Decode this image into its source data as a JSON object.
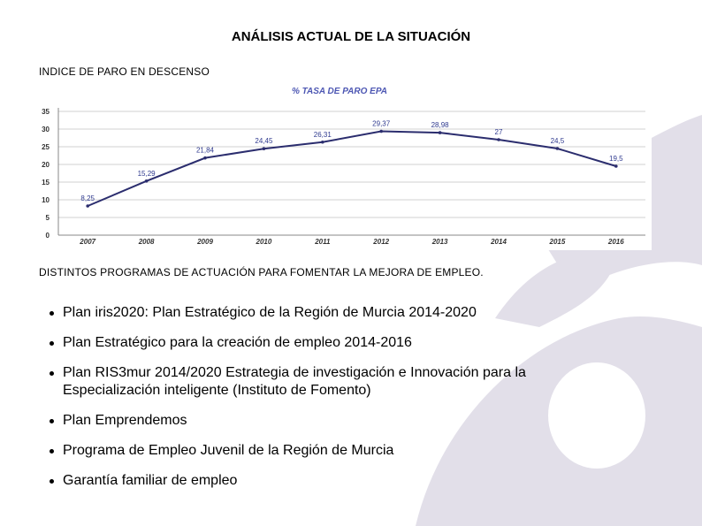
{
  "title": "ANÁLISIS ACTUAL DE LA SITUACIÓN",
  "section1_heading": "INDICE DE PARO EN DESCENSO",
  "section2_heading": "DISTINTOS PROGRAMAS DE ACTUACIÓN PARA FOMENTAR LA MEJORA DE EMPLEO.",
  "chart_data": {
    "type": "line",
    "title": "% TASA DE PARO EPA",
    "xlabel": "",
    "ylabel": "",
    "categories": [
      "2007",
      "2008",
      "2009",
      "2010",
      "2011",
      "2012",
      "2013",
      "2014",
      "2015",
      "2016"
    ],
    "series": [
      {
        "values": [
          8.25,
          15.29,
          21.84,
          24.45,
          26.31,
          29.37,
          28.98,
          27,
          24.5,
          19.5
        ],
        "labels": [
          "8,25",
          "15,29",
          "21,84",
          "24,45",
          "26,31",
          "29,37",
          "28,98",
          "27",
          "24,5",
          "19,5"
        ]
      }
    ],
    "ylim": [
      0,
      35
    ],
    "yticks": [
      "0",
      "5",
      "10",
      "15",
      "20",
      "25",
      "30",
      "35"
    ],
    "grid": true,
    "legend": "none",
    "colors": {
      "line": "#2b2d6e",
      "title": "#4d57b3",
      "grid": "#d0d0d0",
      "labels": "#2f3a8f"
    }
  },
  "bullets": [
    "Plan iris2020: Plan Estratégico de la Región de Murcia 2014-2020",
    "Plan Estratégico para la creación de empleo 2014-2016",
    "Plan RIS3mur 2014/2020 Estrategia de investigación e Innovación para la Especialización inteligente (Instituto de Fomento)",
    "Plan Emprendemos",
    "Programa de Empleo Juvenil de la Región de Murcia",
    "Garantía familiar de empleo"
  ],
  "decoration_color": "#e2dfe9"
}
